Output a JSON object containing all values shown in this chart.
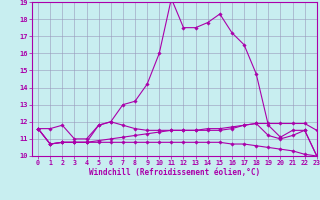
{
  "xlabel": "Windchill (Refroidissement éolien,°C)",
  "xlim": [
    -0.5,
    23
  ],
  "ylim": [
    10,
    19
  ],
  "yticks": [
    10,
    11,
    12,
    13,
    14,
    15,
    16,
    17,
    18,
    19
  ],
  "xticks": [
    0,
    1,
    2,
    3,
    4,
    5,
    6,
    7,
    8,
    9,
    10,
    11,
    12,
    13,
    14,
    15,
    16,
    17,
    18,
    19,
    20,
    21,
    22,
    23
  ],
  "bg_color": "#c8eef0",
  "line_color": "#aa00aa",
  "grid_color": "#9999bb",
  "lines": [
    {
      "x": [
        0,
        1,
        2,
        3,
        4,
        5,
        6,
        7,
        8,
        9,
        10,
        11,
        12,
        13,
        14,
        15,
        16,
        17,
        18,
        19,
        20,
        21,
        22,
        23
      ],
      "y": [
        11.6,
        11.6,
        11.8,
        11.0,
        11.0,
        11.8,
        12.0,
        13.0,
        13.2,
        14.2,
        16.0,
        19.2,
        17.5,
        17.5,
        17.8,
        18.3,
        17.2,
        16.5,
        14.8,
        11.8,
        11.1,
        11.5,
        11.5,
        10.0
      ]
    },
    {
      "x": [
        0,
        1,
        2,
        3,
        4,
        5,
        6,
        7,
        8,
        9,
        10,
        11,
        12,
        13,
        14,
        15,
        16,
        17,
        18,
        19,
        20,
        21,
        22,
        23
      ],
      "y": [
        11.6,
        10.7,
        10.8,
        10.8,
        10.8,
        11.8,
        12.0,
        11.8,
        11.6,
        11.5,
        11.5,
        11.5,
        11.5,
        11.5,
        11.5,
        11.5,
        11.6,
        11.8,
        11.9,
        11.2,
        11.0,
        11.2,
        11.5,
        10.0
      ]
    },
    {
      "x": [
        0,
        1,
        2,
        3,
        4,
        5,
        6,
        7,
        8,
        9,
        10,
        11,
        12,
        13,
        14,
        15,
        16,
        17,
        18,
        19,
        20,
        21,
        22,
        23
      ],
      "y": [
        11.6,
        10.7,
        10.8,
        10.8,
        10.8,
        10.9,
        11.0,
        11.1,
        11.2,
        11.3,
        11.4,
        11.5,
        11.5,
        11.5,
        11.6,
        11.6,
        11.7,
        11.8,
        11.9,
        11.9,
        11.9,
        11.9,
        11.9,
        11.5
      ]
    },
    {
      "x": [
        0,
        1,
        2,
        3,
        4,
        5,
        6,
        7,
        8,
        9,
        10,
        11,
        12,
        13,
        14,
        15,
        16,
        17,
        18,
        19,
        20,
        21,
        22,
        23
      ],
      "y": [
        11.6,
        10.7,
        10.8,
        10.8,
        10.8,
        10.8,
        10.8,
        10.8,
        10.8,
        10.8,
        10.8,
        10.8,
        10.8,
        10.8,
        10.8,
        10.8,
        10.7,
        10.7,
        10.6,
        10.5,
        10.4,
        10.3,
        10.1,
        10.0
      ]
    }
  ]
}
